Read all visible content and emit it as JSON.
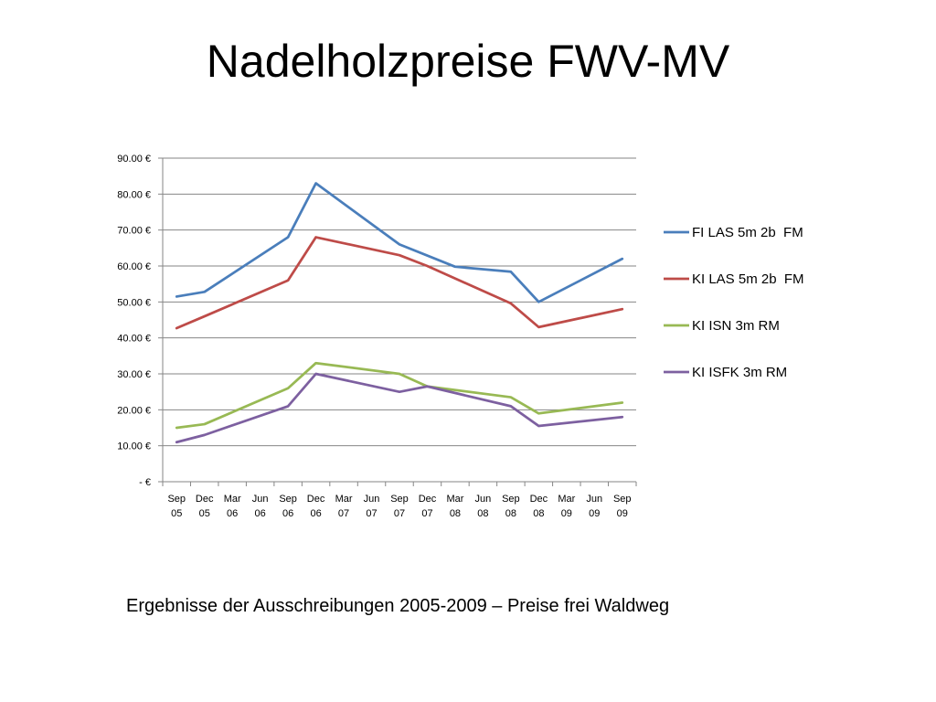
{
  "slide": {
    "title": "Nadelholzpreise FWV-MV",
    "caption": "Ergebnisse der Ausschreibungen 2005-2009 – Preise frei Waldweg"
  },
  "chart_data": {
    "type": "line",
    "title": "",
    "xlabel": "",
    "ylabel": "",
    "ylim": [
      0,
      90
    ],
    "yticks": [
      0,
      10,
      20,
      30,
      40,
      50,
      60,
      70,
      80,
      90
    ],
    "ytick_labels": [
      "-   €",
      "10.00 €",
      "20.00 €",
      "30.00 €",
      "40.00 €",
      "50.00 €",
      "60.00 €",
      "70.00 €",
      "80.00 €",
      "90.00 €"
    ],
    "grid": "horizontal",
    "legend_position": "right",
    "categories": [
      [
        "Sep",
        "05"
      ],
      [
        "Dec",
        "05"
      ],
      [
        "Mar",
        "06"
      ],
      [
        "Jun",
        "06"
      ],
      [
        "Sep",
        "06"
      ],
      [
        "Dec",
        "06"
      ],
      [
        "Mar",
        "07"
      ],
      [
        "Jun",
        "07"
      ],
      [
        "Sep",
        "07"
      ],
      [
        "Dec",
        "07"
      ],
      [
        "Mar",
        "08"
      ],
      [
        "Jun",
        "08"
      ],
      [
        "Sep",
        "08"
      ],
      [
        "Dec",
        "08"
      ],
      [
        "Mar",
        "09"
      ],
      [
        "Jun",
        "09"
      ],
      [
        "Sep",
        "09"
      ]
    ],
    "series": [
      {
        "name": "FI LAS 5m 2b  FM",
        "color": "#4a7ebb",
        "points": [
          [
            "Sep 05",
            51.5
          ],
          [
            "Dec 05",
            52.8
          ],
          [
            "Sep 06",
            68.0
          ],
          [
            "Dec 06",
            83.0
          ],
          [
            "Sep 07",
            66.0
          ],
          [
            "Mar 08",
            59.8
          ],
          [
            "Sep 08",
            58.4
          ],
          [
            "Dec 08",
            50.0
          ],
          [
            "Sep 09",
            62.0
          ]
        ]
      },
      {
        "name": "KI LAS 5m 2b  FM",
        "color": "#be4b48",
        "points": [
          [
            "Sep 05",
            42.7
          ],
          [
            "Dec 05",
            46.0
          ],
          [
            "Sep 06",
            56.0
          ],
          [
            "Dec 06",
            68.0
          ],
          [
            "Sep 07",
            63.0
          ],
          [
            "Dec 07",
            60.0
          ],
          [
            "Sep 08",
            49.6
          ],
          [
            "Dec 08",
            43.0
          ],
          [
            "Sep 09",
            48.0
          ]
        ]
      },
      {
        "name": "KI ISN 3m RM",
        "color": "#98b954",
        "points": [
          [
            "Sep 05",
            15.0
          ],
          [
            "Dec 05",
            16.0
          ],
          [
            "Sep 06",
            26.0
          ],
          [
            "Dec 06",
            33.0
          ],
          [
            "Sep 07",
            30.0
          ],
          [
            "Dec 07",
            26.5
          ],
          [
            "Sep 08",
            23.5
          ],
          [
            "Dec 08",
            19.0
          ],
          [
            "Sep 09",
            22.0
          ]
        ]
      },
      {
        "name": "KI ISFK 3m RM",
        "color": "#7d60a0",
        "points": [
          [
            "Sep 05",
            11.0
          ],
          [
            "Dec 05",
            13.0
          ],
          [
            "Sep 06",
            21.0
          ],
          [
            "Dec 06",
            30.0
          ],
          [
            "Sep 07",
            25.0
          ],
          [
            "Dec 07",
            26.5
          ],
          [
            "Sep 08",
            21.0
          ],
          [
            "Dec 08",
            15.5
          ],
          [
            "Sep 09",
            18.0
          ]
        ]
      }
    ]
  }
}
